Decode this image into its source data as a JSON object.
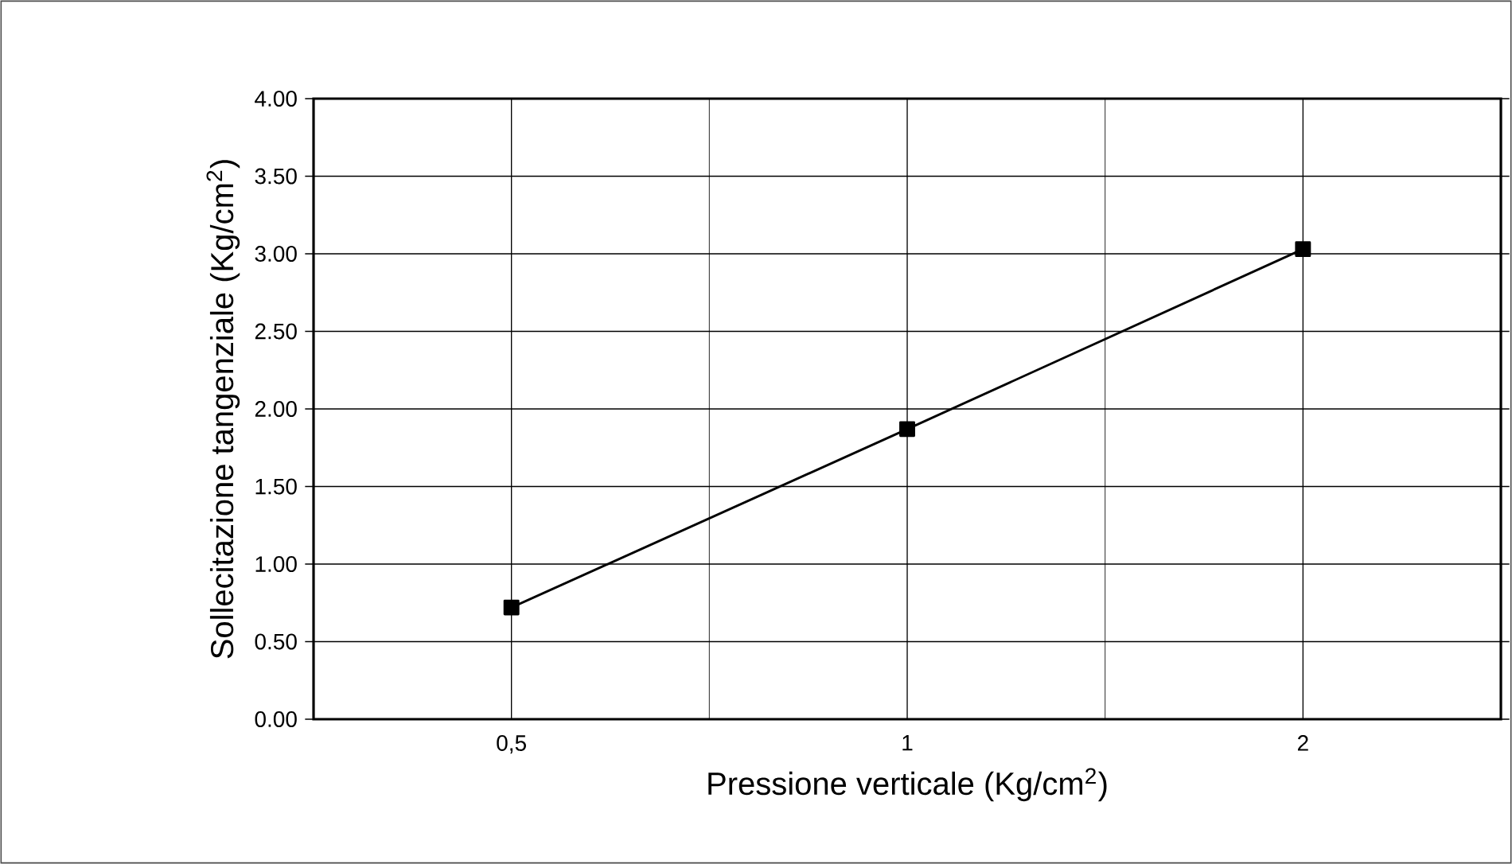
{
  "chart_data": {
    "type": "line",
    "xlabel": "Pressione verticale (Kg/cm$^{2}$)",
    "ylabel": "Sollecitazione tangenziale (Kg/cm$^{2}$)",
    "categories": [
      "0,5",
      "1",
      "2"
    ],
    "series": [
      {
        "color": "#000000",
        "values": [
          0.72,
          1.87,
          3.03
        ]
      }
    ],
    "ylim": [
      0,
      4
    ],
    "yticks": [
      {
        "value": 0,
        "label": "0.00"
      },
      {
        "value": 0.5,
        "label": "0.50"
      },
      {
        "value": 1,
        "label": "1.00"
      },
      {
        "value": 1.5,
        "label": "1.50"
      },
      {
        "value": 2,
        "label": "2.00"
      },
      {
        "value": 2.5,
        "label": "2.50"
      },
      {
        "value": 3,
        "label": "3.00"
      },
      {
        "value": 3.5,
        "label": "3.50"
      },
      {
        "value": 4,
        "label": "4.00"
      }
    ],
    "grid": true,
    "marker": "square",
    "line_style": "solid"
  }
}
